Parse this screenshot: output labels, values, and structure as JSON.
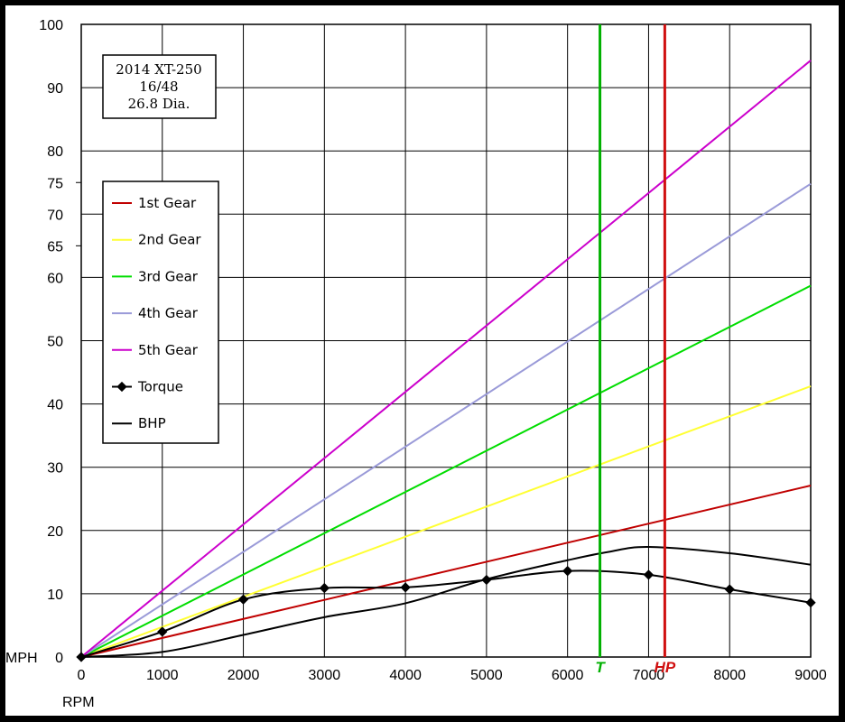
{
  "chart_data": {
    "type": "line",
    "title": "",
    "xlabel": "RPM",
    "ylabel": "MPH",
    "xlim": [
      0,
      9000
    ],
    "ylim": [
      0,
      100
    ],
    "x_ticks": [
      0,
      1000,
      2000,
      3000,
      4000,
      5000,
      6000,
      7000,
      8000,
      9000
    ],
    "y_ticks": [
      0,
      10,
      20,
      30,
      40,
      50,
      60,
      65,
      70,
      75,
      80,
      90,
      100
    ],
    "grid": true,
    "legend_position": "left",
    "info_box": [
      "2014 XT-250",
      "16/48",
      "26.8 Dia."
    ],
    "series": [
      {
        "name": "1st Gear",
        "color": "#c00000",
        "x": [
          0,
          9000
        ],
        "y": [
          0,
          27.1
        ]
      },
      {
        "name": "2nd Gear",
        "color": "#ffff33",
        "x": [
          0,
          9000
        ],
        "y": [
          0,
          42.8
        ]
      },
      {
        "name": "3rd Gear",
        "color": "#00dd00",
        "x": [
          0,
          9000
        ],
        "y": [
          0,
          58.7
        ]
      },
      {
        "name": "4th Gear",
        "color": "#9a9ad8",
        "x": [
          0,
          9000
        ],
        "y": [
          0,
          74.8
        ]
      },
      {
        "name": "5th Gear",
        "color": "#cc00cc",
        "x": [
          0,
          9000
        ],
        "y": [
          0,
          94.3
        ]
      },
      {
        "name": "Torque",
        "color": "#000000",
        "markers": true,
        "x": [
          0,
          1000,
          2000,
          3000,
          4000,
          5000,
          6000,
          7000,
          8000,
          9000
        ],
        "y": [
          0,
          4.0,
          9.1,
          10.9,
          11.0,
          12.2,
          13.6,
          13.0,
          10.7,
          8.6
        ]
      },
      {
        "name": "BHP",
        "color": "#000000",
        "markers": false,
        "x": [
          0,
          1000,
          2000,
          3000,
          4000,
          5000,
          6000,
          6500,
          7000,
          8000,
          9000
        ],
        "y": [
          0,
          0.8,
          3.5,
          6.3,
          8.5,
          12.3,
          15.3,
          16.6,
          17.4,
          16.4,
          14.6
        ]
      }
    ],
    "vlines": [
      {
        "label": "T",
        "x": 6400,
        "color": "#00b000"
      },
      {
        "label": "HP",
        "x": 7200,
        "color": "#d01010"
      }
    ]
  }
}
